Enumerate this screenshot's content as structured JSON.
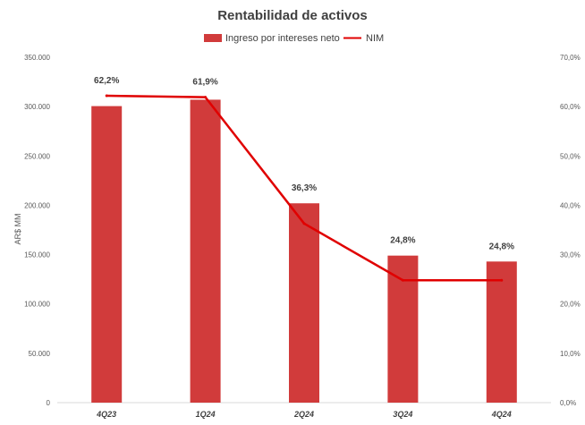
{
  "chart_data": {
    "type": "bar",
    "title": "Rentabilidad de activos",
    "categories": [
      "4Q23",
      "1Q24",
      "2Q24",
      "3Q24",
      "4Q24"
    ],
    "series": [
      {
        "name": "Ingreso por intereses neto",
        "kind": "bar",
        "axis": "left",
        "color": "#d13b3b",
        "values": [
          300500,
          307000,
          202000,
          149000,
          143000
        ]
      },
      {
        "name": "NIM",
        "kind": "line",
        "axis": "right",
        "color": "#e00000",
        "values": [
          62.2,
          61.9,
          36.3,
          24.8,
          24.8
        ],
        "labels": [
          "62,2%",
          "61,9%",
          "36,3%",
          "24,8%",
          "24,8%"
        ]
      }
    ],
    "ylabel": "AR$ MM",
    "ylim": [
      0,
      350000
    ],
    "y2lim": [
      0,
      70
    ],
    "yticks": [
      "0",
      "50.000",
      "100.000",
      "150.000",
      "200.000",
      "250.000",
      "300.000",
      "350.000"
    ],
    "y2ticks": [
      "0,0%",
      "10,0%",
      "20,0%",
      "30,0%",
      "40,0%",
      "50,0%",
      "60,0%",
      "70,0%"
    ],
    "legend_position": "top-center",
    "grid": false
  }
}
